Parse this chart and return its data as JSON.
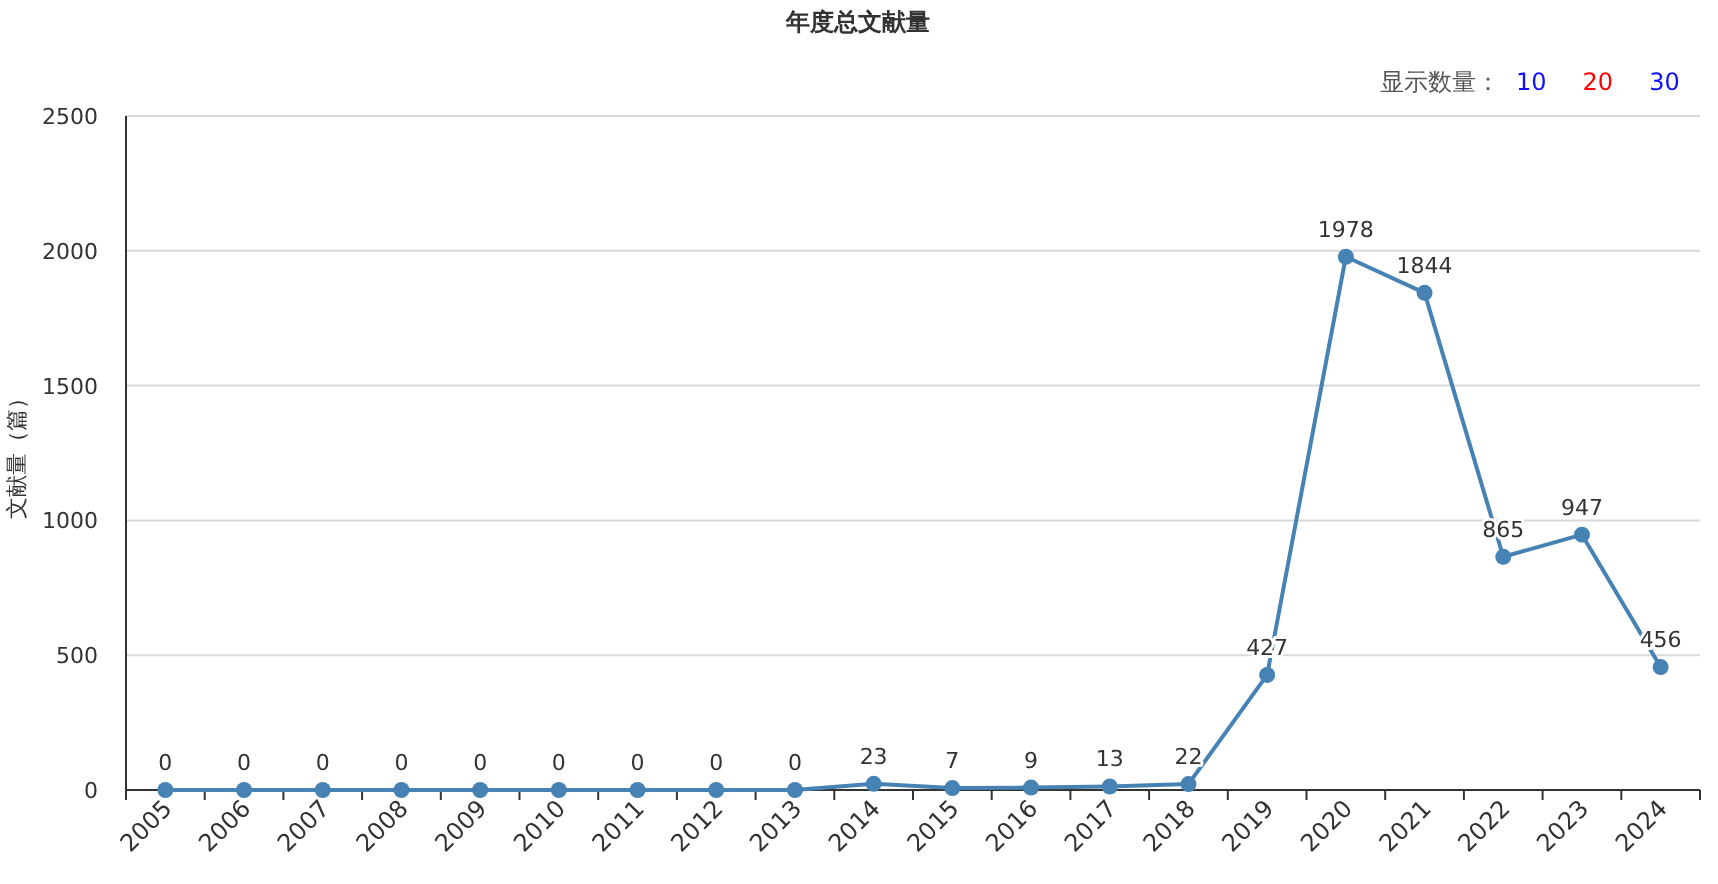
{
  "chart_data": {
    "type": "line",
    "title": "年度总文献量",
    "ylabel": "文献量（篇）",
    "annotations": [
      "显示数量：",
      "10",
      "20",
      "30"
    ],
    "categories": [
      "2005",
      "2006",
      "2007",
      "2008",
      "2009",
      "2010",
      "2011",
      "2012",
      "2013",
      "2014",
      "2015",
      "2016",
      "2017",
      "2018",
      "2019",
      "2020",
      "2021",
      "2022",
      "2023",
      "2024"
    ],
    "series": [
      {
        "color": "#4682b4",
        "values": [
          0,
          0,
          0,
          0,
          0,
          0,
          0,
          0,
          0,
          23,
          7,
          9,
          13,
          22,
          427,
          1978,
          1844,
          865,
          947,
          456
        ]
      }
    ],
    "ylim": [
      0,
      2500
    ],
    "yticks": [
      0,
      500,
      1000,
      1500,
      2000,
      2500
    ],
    "grid": "y",
    "marker": "circle",
    "line_style": "solid",
    "data_labels": true
  }
}
